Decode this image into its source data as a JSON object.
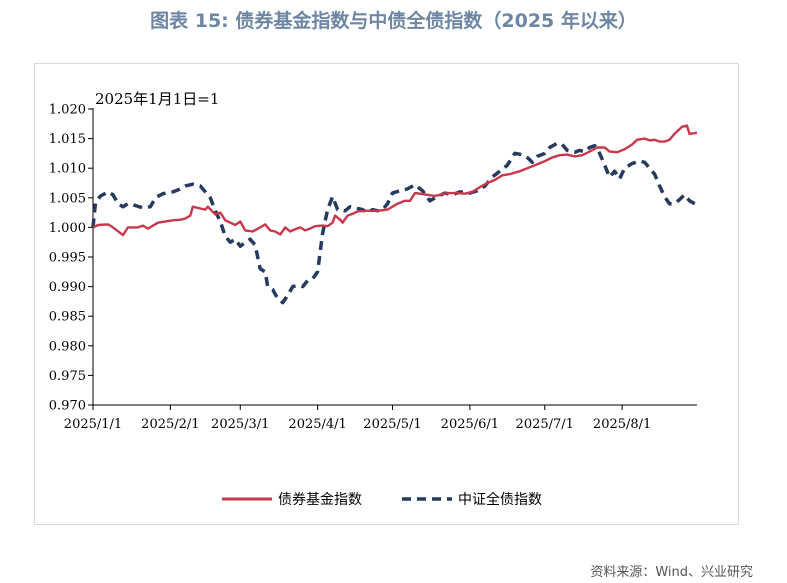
{
  "figure_title": "图表 15: 债券基金指数与中债全债指数（2025 年以来）",
  "source": "资料来源：Wind、兴业研究",
  "colors": {
    "bond_fund": "#c8384a",
    "csi_bond": "#253a5e",
    "title": "#6d86a3"
  },
  "chart_data": {
    "type": "line",
    "annotation": "2025年1月1日=1",
    "ylim": [
      0.97,
      1.02
    ],
    "yticks": [
      "1.020",
      "1.015",
      "1.010",
      "1.005",
      "1.000",
      "0.995",
      "0.990",
      "0.985",
      "0.980",
      "0.975",
      "0.970"
    ],
    "ytick_values": [
      1.02,
      1.015,
      1.01,
      1.005,
      1.0,
      0.995,
      0.99,
      0.985,
      0.98,
      0.975,
      0.97
    ],
    "xticks": [
      "2025/1/1",
      "2025/2/1",
      "2025/3/1",
      "2025/4/1",
      "2025/5/1",
      "2025/6/1",
      "2025/7/1",
      "2025/8/1"
    ],
    "xtick_dates": [
      "2025-01-01",
      "2025-02-01",
      "2025-03-01",
      "2025-04-01",
      "2025-05-01",
      "2025-06-01",
      "2025-07-01",
      "2025-08-01"
    ],
    "x_end": "2025-08-31",
    "legend_position": "bottom",
    "series": [
      {
        "name": "债券基金指数",
        "style": "solid",
        "points": [
          [
            "2025-01-01",
            1.0
          ],
          [
            "2025-01-03",
            1.0004
          ],
          [
            "2025-01-07",
            1.0005
          ],
          [
            "2025-01-09",
            1.0
          ],
          [
            "2025-01-13",
            0.9987
          ],
          [
            "2025-01-15",
            1.0
          ],
          [
            "2025-01-19",
            1.0
          ],
          [
            "2025-01-21",
            1.0003
          ],
          [
            "2025-01-23",
            0.9998
          ],
          [
            "2025-01-27",
            1.0008
          ],
          [
            "2025-02-02",
            1.0012
          ],
          [
            "2025-02-05",
            1.0013
          ],
          [
            "2025-02-07",
            1.0015
          ],
          [
            "2025-02-09",
            1.002
          ],
          [
            "2025-02-10",
            1.0035
          ],
          [
            "2025-02-13",
            1.0032
          ],
          [
            "2025-02-15",
            1.003
          ],
          [
            "2025-02-16",
            1.0035
          ],
          [
            "2025-02-19",
            1.0022
          ],
          [
            "2025-02-21",
            1.0025
          ],
          [
            "2025-02-23",
            1.0012
          ],
          [
            "2025-02-27",
            1.0004
          ],
          [
            "2025-03-01",
            1.001
          ],
          [
            "2025-03-03",
            0.9995
          ],
          [
            "2025-03-06",
            0.9993
          ],
          [
            "2025-03-09",
            1.0
          ],
          [
            "2025-03-11",
            1.0005
          ],
          [
            "2025-03-13",
            0.9995
          ],
          [
            "2025-03-15",
            0.9993
          ],
          [
            "2025-03-17",
            0.9988
          ],
          [
            "2025-03-19",
            1.0
          ],
          [
            "2025-03-21",
            0.9993
          ],
          [
            "2025-03-23",
            0.9997
          ],
          [
            "2025-03-25",
            1.0
          ],
          [
            "2025-03-27",
            0.9995
          ],
          [
            "2025-03-29",
            0.9998
          ],
          [
            "2025-03-31",
            1.0002
          ],
          [
            "2025-04-03",
            1.0003
          ],
          [
            "2025-04-05",
            1.0002
          ],
          [
            "2025-04-07",
            1.0008
          ],
          [
            "2025-04-08",
            1.002
          ],
          [
            "2025-04-10",
            1.0013
          ],
          [
            "2025-04-11",
            1.0008
          ],
          [
            "2025-04-13",
            1.002
          ],
          [
            "2025-04-15",
            1.0023
          ],
          [
            "2025-04-17",
            1.0027
          ],
          [
            "2025-04-20",
            1.0028
          ],
          [
            "2025-04-25",
            1.0028
          ],
          [
            "2025-04-29",
            1.003
          ],
          [
            "2025-05-03",
            1.004
          ],
          [
            "2025-05-06",
            1.0045
          ],
          [
            "2025-05-08",
            1.0045
          ],
          [
            "2025-05-10",
            1.0058
          ],
          [
            "2025-05-12",
            1.0057
          ],
          [
            "2025-05-15",
            1.0055
          ],
          [
            "2025-05-18",
            1.0053
          ],
          [
            "2025-05-20",
            1.0055
          ],
          [
            "2025-05-23",
            1.0058
          ],
          [
            "2025-05-27",
            1.0058
          ],
          [
            "2025-05-30",
            1.0057
          ],
          [
            "2025-06-02",
            1.006
          ],
          [
            "2025-06-05",
            1.0068
          ],
          [
            "2025-06-08",
            1.0075
          ],
          [
            "2025-06-11",
            1.008
          ],
          [
            "2025-06-14",
            1.0088
          ],
          [
            "2025-06-17",
            1.009
          ],
          [
            "2025-06-21",
            1.0095
          ],
          [
            "2025-06-24",
            1.01
          ],
          [
            "2025-06-27",
            1.0105
          ],
          [
            "2025-06-30",
            1.011
          ],
          [
            "2025-07-04",
            1.0118
          ],
          [
            "2025-07-07",
            1.0122
          ],
          [
            "2025-07-10",
            1.0123
          ],
          [
            "2025-07-13",
            1.012
          ],
          [
            "2025-07-16",
            1.0122
          ],
          [
            "2025-07-19",
            1.0128
          ],
          [
            "2025-07-22",
            1.0135
          ],
          [
            "2025-07-25",
            1.0135
          ],
          [
            "2025-07-27",
            1.0128
          ],
          [
            "2025-07-30",
            1.0127
          ],
          [
            "2025-08-02",
            1.0132
          ],
          [
            "2025-08-05",
            1.014
          ],
          [
            "2025-08-07",
            1.0148
          ],
          [
            "2025-08-10",
            1.015
          ],
          [
            "2025-08-12",
            1.0147
          ],
          [
            "2025-08-14",
            1.0148
          ],
          [
            "2025-08-16",
            1.0145
          ],
          [
            "2025-08-18",
            1.0145
          ],
          [
            "2025-08-20",
            1.0148
          ],
          [
            "2025-08-22",
            1.0158
          ],
          [
            "2025-08-25",
            1.017
          ],
          [
            "2025-08-27",
            1.0172
          ],
          [
            "2025-08-28",
            1.0158
          ],
          [
            "2025-08-31",
            1.016
          ]
        ]
      },
      {
        "name": "中证全债指数",
        "style": "dashed",
        "points": [
          [
            "2025-01-01",
            1.0
          ],
          [
            "2025-01-02",
            1.0042
          ],
          [
            "2025-01-04",
            1.0053
          ],
          [
            "2025-01-07",
            1.006
          ],
          [
            "2025-01-09",
            1.0055
          ],
          [
            "2025-01-11",
            1.004
          ],
          [
            "2025-01-13",
            1.0035
          ],
          [
            "2025-01-15",
            1.004
          ],
          [
            "2025-01-18",
            1.0037
          ],
          [
            "2025-01-21",
            1.0033
          ],
          [
            "2025-01-24",
            1.0035
          ],
          [
            "2025-01-26",
            1.005
          ],
          [
            "2025-01-29",
            1.0057
          ],
          [
            "2025-02-02",
            1.006
          ],
          [
            "2025-02-05",
            1.0065
          ],
          [
            "2025-02-07",
            1.007
          ],
          [
            "2025-02-10",
            1.0073
          ],
          [
            "2025-02-13",
            1.007
          ],
          [
            "2025-02-15",
            1.006
          ],
          [
            "2025-02-17",
            1.005
          ],
          [
            "2025-02-19",
            1.0028
          ],
          [
            "2025-02-21",
            1.001
          ],
          [
            "2025-02-23",
            0.9985
          ],
          [
            "2025-02-25",
            0.9975
          ],
          [
            "2025-02-27",
            0.998
          ],
          [
            "2025-03-01",
            0.9968
          ],
          [
            "2025-03-03",
            0.9975
          ],
          [
            "2025-03-05",
            0.998
          ],
          [
            "2025-03-07",
            0.997
          ],
          [
            "2025-03-09",
            0.993
          ],
          [
            "2025-03-11",
            0.9925
          ],
          [
            "2025-03-12",
            0.99
          ],
          [
            "2025-03-14",
            0.9895
          ],
          [
            "2025-03-16",
            0.988
          ],
          [
            "2025-03-18",
            0.9873
          ],
          [
            "2025-03-20",
            0.9885
          ],
          [
            "2025-03-22",
            0.99
          ],
          [
            "2025-03-24",
            0.9902
          ],
          [
            "2025-03-26",
            0.99
          ],
          [
            "2025-03-28",
            0.991
          ],
          [
            "2025-03-30",
            0.9913
          ],
          [
            "2025-04-01",
            0.9925
          ],
          [
            "2025-04-03",
            0.999
          ],
          [
            "2025-04-05",
            1.003
          ],
          [
            "2025-04-07",
            1.0052
          ],
          [
            "2025-04-09",
            1.003
          ],
          [
            "2025-04-12",
            1.0028
          ],
          [
            "2025-04-14",
            1.0035
          ],
          [
            "2025-04-16",
            1.0033
          ],
          [
            "2025-04-19",
            1.003
          ],
          [
            "2025-04-21",
            1.0025
          ],
          [
            "2025-04-23",
            1.003
          ],
          [
            "2025-04-25",
            1.0028
          ],
          [
            "2025-04-27",
            1.003
          ],
          [
            "2025-04-29",
            1.004
          ],
          [
            "2025-05-01",
            1.0058
          ],
          [
            "2025-05-04",
            1.0062
          ],
          [
            "2025-05-07",
            1.0065
          ],
          [
            "2025-05-10",
            1.0072
          ],
          [
            "2025-05-13",
            1.0062
          ],
          [
            "2025-05-16",
            1.0045
          ],
          [
            "2025-05-19",
            1.0052
          ],
          [
            "2025-05-22",
            1.0058
          ],
          [
            "2025-05-25",
            1.0055
          ],
          [
            "2025-05-28",
            1.006
          ],
          [
            "2025-06-01",
            1.0058
          ],
          [
            "2025-06-04",
            1.0062
          ],
          [
            "2025-06-07",
            1.007
          ],
          [
            "2025-06-10",
            1.0085
          ],
          [
            "2025-06-13",
            1.0095
          ],
          [
            "2025-06-16",
            1.0105
          ],
          [
            "2025-06-19",
            1.0125
          ],
          [
            "2025-06-22",
            1.0123
          ],
          [
            "2025-06-24",
            1.0118
          ],
          [
            "2025-06-26",
            1.011
          ],
          [
            "2025-06-28",
            1.012
          ],
          [
            "2025-07-01",
            1.0125
          ],
          [
            "2025-07-03",
            1.0135
          ],
          [
            "2025-07-06",
            1.0142
          ],
          [
            "2025-07-08",
            1.014
          ],
          [
            "2025-07-10",
            1.013
          ],
          [
            "2025-07-13",
            1.0127
          ],
          [
            "2025-07-15",
            1.013
          ],
          [
            "2025-07-17",
            1.0128
          ],
          [
            "2025-07-19",
            1.0135
          ],
          [
            "2025-07-21",
            1.0138
          ],
          [
            "2025-07-23",
            1.0125
          ],
          [
            "2025-07-25",
            1.0105
          ],
          [
            "2025-07-27",
            1.0085
          ],
          [
            "2025-07-29",
            1.0095
          ],
          [
            "2025-07-31",
            1.0082
          ],
          [
            "2025-08-02",
            1.01
          ],
          [
            "2025-08-05",
            1.0108
          ],
          [
            "2025-08-08",
            1.0112
          ],
          [
            "2025-08-10",
            1.011
          ],
          [
            "2025-08-12",
            1.01
          ],
          [
            "2025-08-14",
            1.009
          ],
          [
            "2025-08-16",
            1.007
          ],
          [
            "2025-08-18",
            1.0052
          ],
          [
            "2025-08-20",
            1.004
          ],
          [
            "2025-08-22",
            1.004
          ],
          [
            "2025-08-24",
            1.0047
          ],
          [
            "2025-08-26",
            1.0055
          ],
          [
            "2025-08-28",
            1.0045
          ],
          [
            "2025-08-31",
            1.0038
          ]
        ]
      }
    ]
  }
}
